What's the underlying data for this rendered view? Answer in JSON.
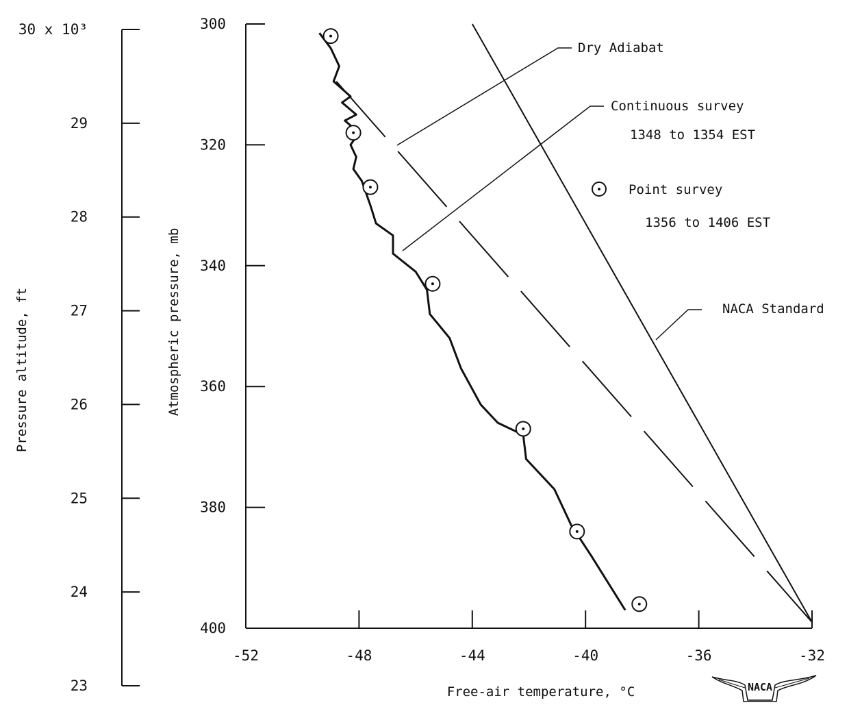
{
  "chart_data": {
    "type": "line",
    "xlabel": "Free-air temperature, °C",
    "ylabel": "Atmospheric pressure, mb",
    "y2label": "Pressure altitude, ft",
    "xlim": [
      -52,
      -32
    ],
    "ylim": [
      300,
      400
    ],
    "y_inverted": true,
    "x_ticks": [
      -52,
      -48,
      -44,
      -40,
      -36,
      -32
    ],
    "y_ticks": [
      300,
      320,
      340,
      360,
      380,
      400
    ],
    "y2_ticks": [
      30,
      29,
      28,
      27,
      26,
      25,
      24,
      23
    ],
    "y2_tick_labels": [
      "30 x 10³",
      "29",
      "28",
      "27",
      "26",
      "25",
      "24",
      "23"
    ],
    "y2_range_ft_thousands": [
      23,
      30
    ],
    "series": [
      {
        "name": "Dry Adiabat",
        "style": "long-dash",
        "x": [
          -48.8,
          -32
        ],
        "y": [
          309.5,
          399
        ]
      },
      {
        "name": "Continuous survey",
        "style": "solid-irregular",
        "x": [
          -49.4,
          -49.0,
          -48.7,
          -48.9,
          -48.3,
          -48.6,
          -48.1,
          -48.5,
          -48.0,
          -48.3,
          -48.1,
          -48.2,
          -47.9,
          -47.6,
          -47.4,
          -46.8,
          -46.8,
          -46.0,
          -45.6,
          -45.5,
          -44.8,
          -44.4,
          -43.7,
          -43.1,
          -42.2,
          -42.1,
          -41.1,
          -40.5,
          -39.8,
          -38.6
        ],
        "y": [
          301.5,
          304,
          307,
          309.5,
          312,
          313,
          315,
          316,
          318,
          320,
          322,
          324,
          326,
          330,
          333,
          335,
          338,
          341,
          344,
          348,
          352,
          357,
          363,
          366,
          368,
          372,
          377,
          383,
          388,
          397
        ]
      },
      {
        "name": "Point survey",
        "style": "circled-dot",
        "x": [
          -49.0,
          -48.2,
          -47.6,
          -45.4,
          -42.2,
          -40.3,
          -38.1
        ],
        "y": [
          302,
          318,
          327,
          343,
          367,
          384,
          396
        ]
      },
      {
        "name": "NACA Standard",
        "style": "solid",
        "x": [
          -44,
          -32
        ],
        "y": [
          300,
          399
        ]
      }
    ],
    "annotations": {
      "dry_adiabat": "Dry Adiabat",
      "continuous_title": "Continuous survey",
      "continuous_time": "1348 to 1354 EST",
      "point_title": "Point survey",
      "point_time": "1356 to 1406 EST",
      "naca_standard": "NACA Standard"
    },
    "logo": "NACA",
    "grid": false
  }
}
